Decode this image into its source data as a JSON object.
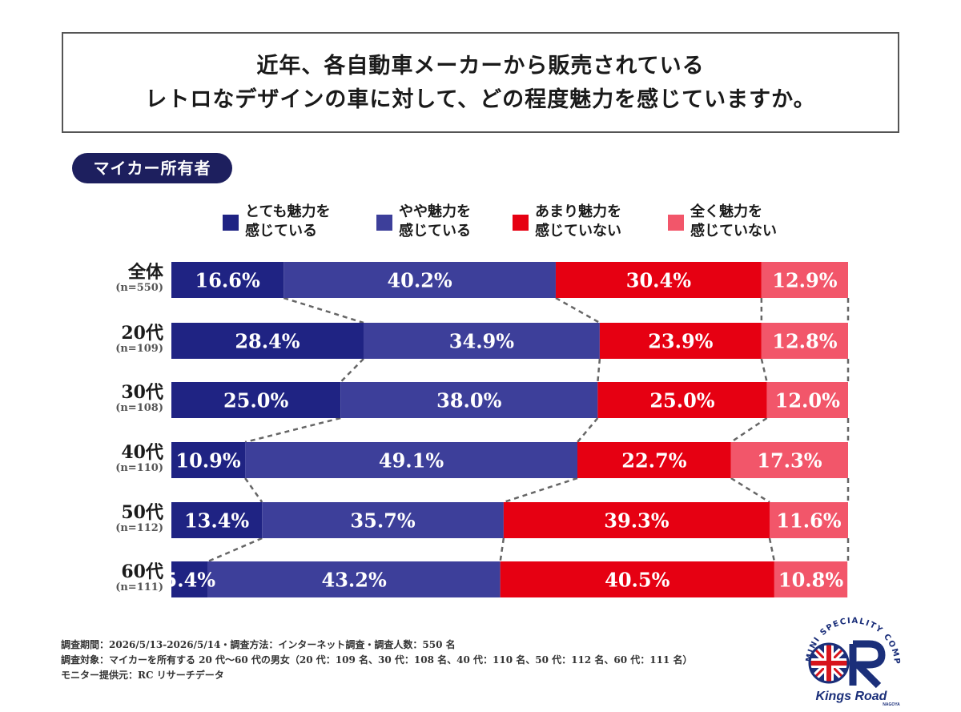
{
  "title": {
    "line1": "近年、各自動車メーカーから販売されている",
    "line2": "レトロなデザインの車に対して、どの程度魅力を感じていますか。"
  },
  "badge": "マイカー所有者",
  "chart_data": {
    "type": "bar",
    "orientation": "horizontal",
    "stacked": "100%",
    "categories": [
      "全体",
      "20代",
      "30代",
      "40代",
      "50代",
      "60代"
    ],
    "sample_sizes": [
      "(n=550)",
      "(n=109)",
      "(n=108)",
      "(n=110)",
      "(n=112)",
      "(n=111)"
    ],
    "series": [
      {
        "name": "とても魅力を\n感じている",
        "color": "#1f2383",
        "values": [
          16.6,
          28.4,
          25.0,
          10.9,
          13.4,
          5.4
        ]
      },
      {
        "name": "やや魅力を\n感じている",
        "color": "#3d3f9a",
        "values": [
          40.2,
          34.9,
          38.0,
          49.1,
          35.7,
          43.2
        ]
      },
      {
        "name": "あまり魅力を\n感じていない",
        "color": "#e60012",
        "values": [
          30.4,
          23.9,
          25.0,
          22.7,
          39.3,
          40.5
        ]
      },
      {
        "name": "全く魅力を\n感じていない",
        "color": "#f2566a",
        "values": [
          12.9,
          12.8,
          12.0,
          17.3,
          11.6,
          10.8
        ]
      }
    ],
    "data_labels": [
      [
        "16.6%",
        "40.2%",
        "30.4%",
        "12.9%"
      ],
      [
        "28.4%",
        "34.9%",
        "23.9%",
        "12.8%"
      ],
      [
        "25.0%",
        "38.0%",
        "25.0%",
        "12.0%"
      ],
      [
        "10.9%",
        "49.1%",
        "22.7%",
        "17.3%"
      ],
      [
        "13.4%",
        "35.7%",
        "39.3%",
        "11.6%"
      ],
      [
        "5.4%",
        "43.2%",
        "40.5%",
        "10.8%"
      ]
    ],
    "xlim": [
      0,
      100
    ],
    "legend_position": "top",
    "connector_lines": "dashed"
  },
  "footnotes": [
    "調査期間：2026/5/13-2026/5/14・調査方法：インターネット調査・調査人数：550 名",
    "調査対象：マイカーを所有する 20 代〜60 代の男女（20 代：109 名、30 代：108 名、40 代：110 名、50 代：112 名、60 代：111 名）",
    "モニター提供元：RC リサーチデータ"
  ],
  "logo": {
    "arc_text": "MINI SPECIALITY COMPANY",
    "name": "Kings Road",
    "sub": "NAGOYA",
    "colors": {
      "blue": "#1b2f7a",
      "red": "#d7141c"
    }
  }
}
